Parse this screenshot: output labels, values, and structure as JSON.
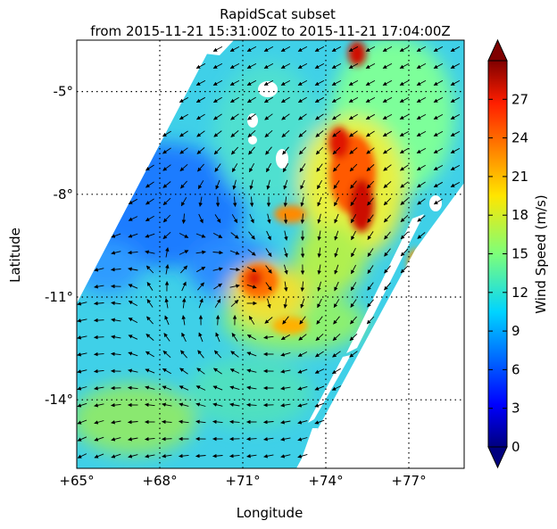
{
  "chart_data": {
    "type": "heatmap",
    "title": "RapidScat subset",
    "subtitle": "from 2015-11-21 15:31:00Z to 2015-11-21 17:04:00Z",
    "xlabel": "Longitude",
    "ylabel": "Latitude",
    "xlim": [
      65,
      79
    ],
    "ylim": [
      -16,
      -3.5
    ],
    "x_ticks": [
      {
        "value": 65,
        "label": "+65°"
      },
      {
        "value": 68,
        "label": "+68°"
      },
      {
        "value": 71,
        "label": "+71°"
      },
      {
        "value": 74,
        "label": "+74°"
      },
      {
        "value": 77,
        "label": "+77°"
      }
    ],
    "y_ticks": [
      {
        "value": -5,
        "label": "-5°"
      },
      {
        "value": -8,
        "label": "-8°"
      },
      {
        "value": -11,
        "label": "-11°"
      },
      {
        "value": -14,
        "label": "-14°"
      }
    ],
    "grid": "dotted",
    "colorbar": {
      "label": "Wind Speed (m/s)",
      "min": 0,
      "max": 30,
      "ticks": [
        "0",
        "3",
        "6",
        "9",
        "12",
        "15",
        "18",
        "21",
        "24",
        "27"
      ],
      "colormap": "jet",
      "extend": "both"
    },
    "wind_field": "cyclonic circulation, center near 71.5°E 11.5°S; wind vectors shown as arrows"
  }
}
